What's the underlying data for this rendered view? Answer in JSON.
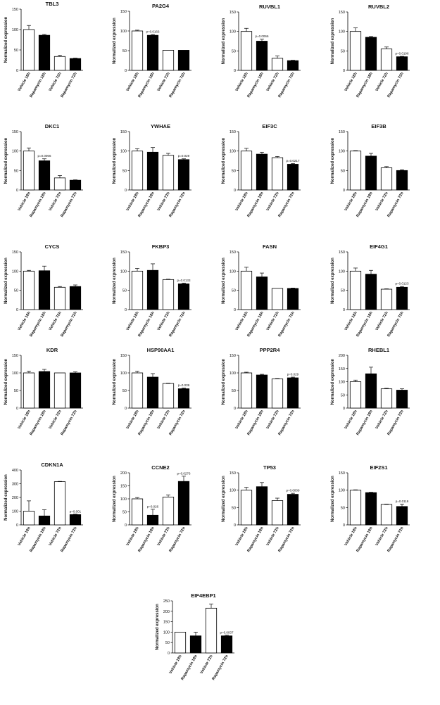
{
  "colors": {
    "filled_bar": "#000000",
    "open_bar": "#ffffff",
    "stroke": "#000000"
  },
  "chart_data": [
    {
      "type": "bar",
      "title": "TBL3",
      "ylabel": "Normalized expression",
      "categories": [
        "Vehicle 18h",
        "Rapamycin 18h",
        "Vehicle 72h",
        "Rapamycin 72h"
      ],
      "values": [
        100,
        86,
        34,
        29
      ],
      "errors": [
        10,
        2,
        3,
        1
      ],
      "fill": [
        "open",
        "filled",
        "open",
        "filled"
      ],
      "annotations": [
        "",
        "",
        "",
        ""
      ],
      "yticks": [
        0,
        50,
        100,
        150
      ],
      "ylim": [
        0,
        150
      ]
    },
    {
      "type": "bar",
      "title": "PA2G4",
      "ylabel": "Normalized expression",
      "categories": [
        "Vehicle 18h",
        "Rapamycin 18h",
        "Vehicle 72h",
        "Rapamycin 72h"
      ],
      "values": [
        100,
        89,
        51,
        51
      ],
      "errors": [
        2,
        2,
        0,
        0
      ],
      "fill": [
        "open",
        "filled",
        "open",
        "filled"
      ],
      "annotations": [
        "",
        "p=0.0166",
        "",
        ""
      ],
      "yticks": [
        0,
        50,
        100,
        150
      ],
      "ylim": [
        0,
        150
      ]
    },
    {
      "type": "bar",
      "title": "RUVBL1",
      "ylabel": "Normalized expression",
      "categories": [
        "Vehicle 18h",
        "Rapamycin 18h",
        "Vehicle 72h",
        "Rapamycin 72h"
      ],
      "values": [
        100,
        75,
        31,
        25
      ],
      "errors": [
        8,
        5,
        6,
        1
      ],
      "fill": [
        "open",
        "filled",
        "open",
        "filled"
      ],
      "annotations": [
        "",
        "p=0.0066",
        "",
        ""
      ],
      "yticks": [
        0,
        50,
        100,
        150
      ],
      "ylim": [
        0,
        150
      ]
    },
    {
      "type": "bar",
      "title": "RUVBL2",
      "ylabel": "Normalized expression",
      "categories": [
        "Vehicle 18h",
        "Rapamycin 18h",
        "Vehicle 72h",
        "Rapamycin 72h"
      ],
      "values": [
        100,
        85,
        55,
        35
      ],
      "errors": [
        9,
        2,
        5,
        1
      ],
      "fill": [
        "open",
        "filled",
        "open",
        "filled"
      ],
      "annotations": [
        "",
        "",
        "",
        "p=0.0196"
      ],
      "yticks": [
        0,
        50,
        100,
        150
      ],
      "ylim": [
        0,
        150
      ]
    },
    {
      "type": "bar",
      "title": "DKC1",
      "ylabel": "Normalized expression",
      "categories": [
        "Vehicle 18h",
        "Rapamycin 18h",
        "Vehicle 72h",
        "Rapamycin 72h"
      ],
      "values": [
        100,
        75,
        31,
        25
      ],
      "errors": [
        8,
        5,
        6,
        1
      ],
      "fill": [
        "open",
        "filled",
        "open",
        "filled"
      ],
      "annotations": [
        "",
        "p=0.0066",
        "",
        ""
      ],
      "yticks": [
        0,
        50,
        100,
        150
      ],
      "ylim": [
        0,
        150
      ]
    },
    {
      "type": "bar",
      "title": "YWHAE",
      "ylabel": "Normalized expression",
      "categories": [
        "Vehicle 18h",
        "Rapamycin 18h",
        "Vehicle 72h",
        "Rapamycin 72h"
      ],
      "values": [
        100,
        97,
        89,
        78
      ],
      "errors": [
        6,
        12,
        5,
        2
      ],
      "fill": [
        "open",
        "filled",
        "open",
        "filled"
      ],
      "annotations": [
        "",
        "",
        "",
        "p=0.029"
      ],
      "yticks": [
        0,
        50,
        100,
        150
      ],
      "ylim": [
        0,
        150
      ]
    },
    {
      "type": "bar",
      "title": "EIF3C",
      "ylabel": "Normalized expression",
      "categories": [
        "Vehicle 18h",
        "Rapamycin 18h",
        "Vehicle 72h",
        "Rapamycin 72h"
      ],
      "values": [
        100,
        92,
        83,
        66
      ],
      "errors": [
        7,
        5,
        3,
        2
      ],
      "fill": [
        "open",
        "filled",
        "open",
        "filled"
      ],
      "annotations": [
        "",
        "",
        "",
        "p=0.0217"
      ],
      "yticks": [
        0,
        50,
        100,
        150
      ],
      "ylim": [
        0,
        150
      ]
    },
    {
      "type": "bar",
      "title": "EIF3B",
      "ylabel": "Normalized expression",
      "categories": [
        "Vehicle 18h",
        "Rapamycin 18h",
        "Vehicle 72h",
        "Rapamycin 72h"
      ],
      "values": [
        100,
        87,
        57,
        50
      ],
      "errors": [
        1,
        7,
        3,
        2
      ],
      "fill": [
        "open",
        "filled",
        "open",
        "filled"
      ],
      "annotations": [
        "",
        "",
        "",
        ""
      ],
      "yticks": [
        0,
        50,
        100,
        150
      ],
      "ylim": [
        0,
        150
      ]
    },
    {
      "type": "bar",
      "title": "CYCS",
      "ylabel": "Normalized expression",
      "categories": [
        "Vehicle 18h",
        "Rapamycin 18h",
        "Vehicle 72h",
        "Rapamycin 72h"
      ],
      "values": [
        100,
        101,
        58,
        60
      ],
      "errors": [
        2,
        12,
        2,
        4
      ],
      "fill": [
        "open",
        "filled",
        "open",
        "filled"
      ],
      "annotations": [
        "",
        "",
        "",
        ""
      ],
      "yticks": [
        0,
        50,
        100,
        150
      ],
      "ylim": [
        0,
        150
      ]
    },
    {
      "type": "bar",
      "title": "FKBP3",
      "ylabel": "Normalized expression",
      "categories": [
        "Vehicle 18h",
        "Rapamycin 18h",
        "Vehicle 72h",
        "Rapamycin 72h"
      ],
      "values": [
        100,
        102,
        78,
        67
      ],
      "errors": [
        7,
        17,
        1,
        2
      ],
      "fill": [
        "open",
        "filled",
        "open",
        "filled"
      ],
      "annotations": [
        "",
        "",
        "",
        "p=0.0133"
      ],
      "yticks": [
        0,
        50,
        100,
        150
      ],
      "ylim": [
        0,
        150
      ]
    },
    {
      "type": "bar",
      "title": "FASN",
      "ylabel": "Normalized expression",
      "categories": [
        "Vehicle 18h",
        "Rapamycin 18h",
        "Vehicle 72h",
        "Rapamycin 72h"
      ],
      "values": [
        100,
        85,
        55,
        55
      ],
      "errors": [
        10,
        10,
        0,
        1
      ],
      "fill": [
        "open",
        "filled",
        "open",
        "filled"
      ],
      "annotations": [
        "",
        "",
        "",
        ""
      ],
      "yticks": [
        0,
        50,
        100,
        150
      ],
      "ylim": [
        0,
        150
      ]
    },
    {
      "type": "bar",
      "title": "EIF4G1",
      "ylabel": "Normalized expression",
      "categories": [
        "Vehicle 18h",
        "Rapamycin 18h",
        "Vehicle 72h",
        "Rapamycin 72h"
      ],
      "values": [
        100,
        92,
        53,
        58
      ],
      "errors": [
        8,
        10,
        1,
        2
      ],
      "fill": [
        "open",
        "filled",
        "open",
        "filled"
      ],
      "annotations": [
        "",
        "",
        "",
        "p=0.0123"
      ],
      "yticks": [
        0,
        50,
        100,
        150
      ],
      "ylim": [
        0,
        150
      ]
    },
    {
      "type": "bar",
      "title": "KDR",
      "ylabel": "Normalized expression",
      "categories": [
        "Vehicle 18h",
        "Rapamycin 18h",
        "Vehicle 72h",
        "Rapamycin 72h"
      ],
      "values": [
        100,
        104,
        100,
        100
      ],
      "errors": [
        5,
        6,
        0,
        3
      ],
      "fill": [
        "open",
        "filled",
        "open",
        "filled"
      ],
      "annotations": [
        "",
        "",
        "",
        ""
      ],
      "yticks": [
        0,
        50,
        100,
        150
      ],
      "ylim": [
        0,
        150
      ]
    },
    {
      "type": "bar",
      "title": "HSP90AA1",
      "ylabel": "Normalized expression",
      "categories": [
        "Vehicle 18h",
        "Rapamycin 18h",
        "Vehicle 72h",
        "Rapamycin 72h"
      ],
      "values": [
        100,
        88,
        70,
        55
      ],
      "errors": [
        5,
        10,
        1,
        2
      ],
      "fill": [
        "open",
        "filled",
        "open",
        "filled"
      ],
      "annotations": [
        "",
        "",
        "",
        "p=0.039"
      ],
      "yticks": [
        0,
        50,
        100,
        150
      ],
      "ylim": [
        0,
        150
      ]
    },
    {
      "type": "bar",
      "title": "PPP2R4",
      "ylabel": "Normalized expression",
      "categories": [
        "Vehicle 18h",
        "Rapamycin 18h",
        "Vehicle 72h",
        "Rapamycin 72h"
      ],
      "values": [
        100,
        94,
        83,
        86
      ],
      "errors": [
        2,
        2,
        1,
        2
      ],
      "fill": [
        "open",
        "filled",
        "open",
        "filled"
      ],
      "annotations": [
        "",
        "",
        "",
        "p=0.029"
      ],
      "yticks": [
        0,
        50,
        100,
        150
      ],
      "ylim": [
        0,
        150
      ]
    },
    {
      "type": "bar",
      "title": "RHEBL1",
      "ylabel": "Normalized expression",
      "categories": [
        "Vehicle 18h",
        "Rapamycin 18h",
        "Vehicle 72h",
        "Rapamycin 72h"
      ],
      "values": [
        100,
        130,
        73,
        68
      ],
      "errors": [
        6,
        25,
        2,
        5
      ],
      "fill": [
        "open",
        "filled",
        "open",
        "filled"
      ],
      "annotations": [
        "",
        "",
        "",
        ""
      ],
      "yticks": [
        0,
        50,
        100,
        150,
        200
      ],
      "ylim": [
        0,
        200
      ]
    },
    {
      "type": "bar",
      "title": "CDKN1A",
      "ylabel": "Normalized expression",
      "categories": [
        "Vehicle 18h",
        "Rapamycin 18h",
        "Vehicle 72h",
        "Rapamycin 72h"
      ],
      "values": [
        100,
        65,
        315,
        75
      ],
      "errors": [
        75,
        45,
        2,
        3
      ],
      "fill": [
        "open",
        "filled",
        "open",
        "filled"
      ],
      "annotations": [
        "",
        "",
        "",
        "p=0.001"
      ],
      "yticks": [
        0,
        100,
        200,
        300,
        400
      ],
      "ylim": [
        0,
        400
      ]
    },
    {
      "type": "bar",
      "title": "CCNE2",
      "ylabel": "Normalized expression",
      "categories": [
        "Vehicle 18h",
        "Rapamycin 18h",
        "Vehicle 72h",
        "Rapamycin 72h"
      ],
      "values": [
        100,
        37,
        107,
        167
      ],
      "errors": [
        5,
        23,
        8,
        20
      ],
      "fill": [
        "open",
        "filled",
        "open",
        "filled"
      ],
      "annotations": [
        "",
        "p=0.026",
        "",
        "p=0.0276"
      ],
      "yticks": [
        0,
        50,
        100,
        150,
        200
      ],
      "ylim": [
        0,
        200
      ]
    },
    {
      "type": "bar",
      "title": "TP53",
      "ylabel": "Normalized expression",
      "categories": [
        "Vehicle 18h",
        "Rapamycin 18h",
        "Vehicle 72h",
        "Rapamycin 72h"
      ],
      "values": [
        100,
        110,
        70,
        88
      ],
      "errors": [
        8,
        12,
        7,
        3
      ],
      "fill": [
        "open",
        "filled",
        "open",
        "filled"
      ],
      "annotations": [
        "",
        "",
        "",
        "p=0.0009"
      ],
      "yticks": [
        0,
        50,
        100,
        150
      ],
      "ylim": [
        0,
        150
      ]
    },
    {
      "type": "bar",
      "title": "EIF2S1",
      "ylabel": "Normalized expression",
      "categories": [
        "Vehicle 18h",
        "Rapamycin 18h",
        "Vehicle 72h",
        "Rapamycin 72h"
      ],
      "values": [
        100,
        93,
        59,
        53
      ],
      "errors": [
        1,
        1,
        1,
        7
      ],
      "fill": [
        "open",
        "filled",
        "open",
        "filled"
      ],
      "annotations": [
        "",
        "",
        "",
        "p=0.0119"
      ],
      "yticks": [
        0,
        50,
        100,
        150
      ],
      "ylim": [
        0,
        150
      ]
    },
    {
      "type": "bar",
      "title": "EIF4EBP1",
      "ylabel": "Normalized expression",
      "categories": [
        "Vehicle 18h",
        "Rapamycin 18h",
        "Vehicle 72h",
        "Rapamycin 72h"
      ],
      "values": [
        100,
        82,
        215,
        82
      ],
      "errors": [
        0,
        18,
        20,
        3
      ],
      "fill": [
        "open",
        "filled",
        "open",
        "filled"
      ],
      "annotations": [
        "",
        "",
        "",
        "p=0.0037"
      ],
      "yticks": [
        0,
        50,
        100,
        150,
        200,
        250
      ],
      "ylim": [
        0,
        250
      ]
    }
  ]
}
